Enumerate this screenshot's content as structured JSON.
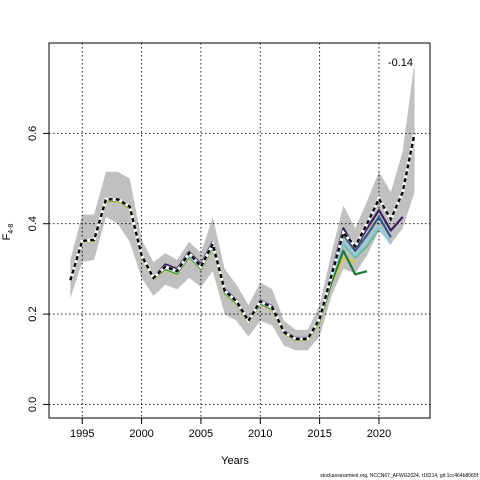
{
  "chart_data": {
    "type": "line",
    "xlabel": "Years",
    "ylabel": "F",
    "ylabel_subscript": "4-8",
    "xticks": [
      1995,
      2000,
      2005,
      2010,
      2015,
      2020
    ],
    "yticks": [
      "0.0",
      "0.2",
      "0.4",
      "0.6"
    ],
    "xlim": [
      1992.2,
      2024.3
    ],
    "ylim": [
      -0.03,
      0.8
    ],
    "grid": true,
    "annotation": "-0.14",
    "footer": "stockassessment.org, NCCN67_AFWG2024, r18214, git:1cc464b8065f",
    "band": {
      "color": "#c0c0c0",
      "x": [
        1994,
        1995,
        1996,
        1997,
        1998,
        1999,
        2000,
        2001,
        2002,
        2003,
        2004,
        2005,
        2006,
        2007,
        2008,
        2009,
        2010,
        2011,
        2012,
        2013,
        2014,
        2015,
        2016,
        2017,
        2018,
        2019,
        2020,
        2021,
        2022,
        2023
      ],
      "upper": [
        0.32,
        0.42,
        0.42,
        0.515,
        0.515,
        0.5,
        0.365,
        0.315,
        0.335,
        0.32,
        0.36,
        0.335,
        0.415,
        0.3,
        0.265,
        0.22,
        0.27,
        0.255,
        0.185,
        0.165,
        0.165,
        0.22,
        0.335,
        0.44,
        0.39,
        0.45,
        0.515,
        0.47,
        0.56,
        0.76
      ],
      "lower": [
        0.235,
        0.315,
        0.32,
        0.415,
        0.4,
        0.36,
        0.28,
        0.24,
        0.265,
        0.255,
        0.28,
        0.26,
        0.295,
        0.2,
        0.185,
        0.15,
        0.185,
        0.175,
        0.13,
        0.12,
        0.12,
        0.15,
        0.24,
        0.3,
        0.29,
        0.33,
        0.385,
        0.355,
        0.39,
        0.47
      ]
    },
    "series": [
      {
        "color": "#000000",
        "dashed": true,
        "x": [
          1994,
          1995,
          1996,
          1997,
          1998,
          1999,
          2000,
          2001,
          2002,
          2003,
          2004,
          2005,
          2006,
          2007,
          2008,
          2009,
          2010,
          2011,
          2012,
          2013,
          2014,
          2015,
          2016,
          2017,
          2018,
          2019,
          2020,
          2021,
          2022,
          2023
        ],
        "values": [
          0.275,
          0.362,
          0.364,
          0.454,
          0.454,
          0.438,
          0.33,
          0.28,
          0.305,
          0.295,
          0.335,
          0.305,
          0.355,
          0.252,
          0.228,
          0.185,
          0.228,
          0.215,
          0.16,
          0.145,
          0.145,
          0.19,
          0.285,
          0.38,
          0.35,
          0.4,
          0.455,
          0.41,
          0.47,
          0.6
        ]
      },
      {
        "color": "#3b1e5e",
        "x": [
          1994,
          1995,
          1996,
          1997,
          1998,
          1999,
          2000,
          2001,
          2002,
          2003,
          2004,
          2005,
          2006,
          2007,
          2008,
          2009,
          2010,
          2011,
          2012,
          2013,
          2014,
          2015,
          2016,
          2017,
          2018,
          2019,
          2020,
          2021,
          2022
        ],
        "values": [
          0.275,
          0.362,
          0.364,
          0.454,
          0.454,
          0.438,
          0.33,
          0.28,
          0.31,
          0.3,
          0.338,
          0.31,
          0.36,
          0.255,
          0.23,
          0.187,
          0.23,
          0.217,
          0.162,
          0.147,
          0.147,
          0.19,
          0.29,
          0.39,
          0.345,
          0.39,
          0.43,
          0.385,
          0.415
        ]
      },
      {
        "color": "#2f5d8a",
        "x": [
          1994,
          1995,
          1996,
          1997,
          1998,
          1999,
          2000,
          2001,
          2002,
          2003,
          2004,
          2005,
          2006,
          2007,
          2008,
          2009,
          2010,
          2011,
          2012,
          2013,
          2014,
          2015,
          2016,
          2017,
          2018,
          2019,
          2020,
          2021
        ],
        "values": [
          0.275,
          0.362,
          0.364,
          0.454,
          0.454,
          0.438,
          0.33,
          0.28,
          0.305,
          0.295,
          0.333,
          0.305,
          0.355,
          0.252,
          0.228,
          0.185,
          0.228,
          0.215,
          0.16,
          0.145,
          0.145,
          0.19,
          0.285,
          0.375,
          0.34,
          0.375,
          0.415,
          0.37
        ]
      },
      {
        "color": "#8fc8e2",
        "x": [
          1994,
          1995,
          1996,
          1997,
          1998,
          1999,
          2000,
          2001,
          2002,
          2003,
          2004,
          2005,
          2006,
          2007,
          2008,
          2009,
          2010,
          2011,
          2012,
          2013,
          2014,
          2015,
          2016,
          2017,
          2018,
          2019,
          2020,
          2021
        ],
        "values": [
          0.275,
          0.362,
          0.364,
          0.454,
          0.454,
          0.438,
          0.33,
          0.28,
          0.302,
          0.292,
          0.33,
          0.302,
          0.352,
          0.25,
          0.226,
          0.184,
          0.226,
          0.213,
          0.159,
          0.144,
          0.144,
          0.188,
          0.28,
          0.36,
          0.33,
          0.36,
          0.395,
          0.355
        ]
      },
      {
        "color": "#6fb98f",
        "x": [
          1994,
          1995,
          1996,
          1997,
          1998,
          1999,
          2000,
          2001,
          2002,
          2003,
          2004,
          2005,
          2006,
          2007,
          2008,
          2009,
          2010,
          2011,
          2012,
          2013,
          2014,
          2015,
          2016,
          2017,
          2018,
          2019,
          2020
        ],
        "values": [
          0.275,
          0.362,
          0.364,
          0.454,
          0.454,
          0.438,
          0.33,
          0.28,
          0.302,
          0.292,
          0.33,
          0.302,
          0.352,
          0.25,
          0.226,
          0.184,
          0.226,
          0.213,
          0.159,
          0.144,
          0.144,
          0.188,
          0.28,
          0.355,
          0.325,
          0.35,
          0.39
        ]
      },
      {
        "color": "#1f7a3a",
        "x": [
          1994,
          1995,
          1996,
          1997,
          1998,
          1999,
          2000,
          2001,
          2002,
          2003,
          2004,
          2005,
          2006,
          2007,
          2008,
          2009,
          2010,
          2011,
          2012,
          2013,
          2014,
          2015,
          2016,
          2017,
          2018,
          2019
        ],
        "values": [
          0.275,
          0.362,
          0.364,
          0.452,
          0.452,
          0.436,
          0.328,
          0.279,
          0.3,
          0.29,
          0.328,
          0.3,
          0.35,
          0.248,
          0.224,
          0.183,
          0.224,
          0.211,
          0.158,
          0.143,
          0.143,
          0.185,
          0.27,
          0.34,
          0.288,
          0.295
        ]
      },
      {
        "color": "#d8c83a",
        "x": [
          1994,
          1995,
          1996,
          1997,
          1998,
          1999,
          2000,
          2001,
          2002,
          2003,
          2004,
          2005,
          2006,
          2007,
          2008,
          2009,
          2010,
          2011,
          2012,
          2013,
          2014,
          2015,
          2016,
          2017,
          2018
        ],
        "values": [
          0.275,
          0.36,
          0.362,
          0.45,
          0.45,
          0.434,
          0.326,
          0.278,
          0.298,
          0.288,
          0.326,
          0.298,
          0.348,
          0.246,
          0.222,
          0.182,
          0.222,
          0.209,
          0.157,
          0.142,
          0.142,
          0.183,
          0.268,
          0.325,
          0.315
        ]
      }
    ]
  }
}
